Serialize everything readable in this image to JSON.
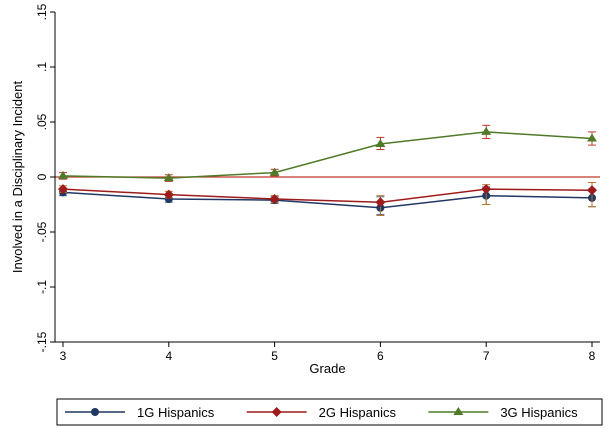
{
  "chart_data": {
    "type": "line",
    "xlabel": "Grade",
    "ylabel": "Involved in a Disciplinary Incident",
    "x": [
      3,
      4,
      5,
      6,
      7,
      8
    ],
    "x_ticks": [
      "3",
      "4",
      "5",
      "6",
      "7",
      "8"
    ],
    "ylim": [
      -0.15,
      0.15
    ],
    "y_ticks": [
      {
        "value": 0.15,
        "label": ".15"
      },
      {
        "value": 0.1,
        "label": ".1"
      },
      {
        "value": 0.05,
        "label": ".05"
      },
      {
        "value": 0,
        "label": "0"
      },
      {
        "value": -0.05,
        "label": "-.05"
      },
      {
        "value": -0.1,
        "label": "-.1"
      },
      {
        "value": -0.15,
        "label": "-.15"
      }
    ],
    "grid": false,
    "reference_line": {
      "y": 0,
      "color": "#c0392b"
    },
    "legend_position": "bottom",
    "series": [
      {
        "name": "1G Hispanics",
        "marker": "circle",
        "color": "#1f3864",
        "errorbar_color": "#4a6d9a",
        "values": [
          -0.014,
          -0.02,
          -0.021,
          -0.028,
          -0.017,
          -0.019
        ],
        "ci_low": [
          -0.017,
          -0.023,
          -0.024,
          -0.034,
          -0.025,
          -0.027
        ],
        "ci_high": [
          -0.011,
          -0.017,
          -0.018,
          -0.018,
          -0.009,
          -0.011
        ]
      },
      {
        "name": "2G Hispanics",
        "marker": "diamond",
        "color": "#9e1b1b",
        "errorbar_color": "#b7752a",
        "values": [
          -0.011,
          -0.016,
          -0.02,
          -0.023,
          -0.011,
          -0.012
        ],
        "ci_low": [
          -0.014,
          -0.019,
          -0.023,
          -0.035,
          -0.025,
          -0.027
        ],
        "ci_high": [
          -0.008,
          -0.013,
          -0.017,
          -0.017,
          -0.007,
          -0.005
        ]
      },
      {
        "name": "3G Hispanics",
        "marker": "triangle",
        "color": "#4f7a28",
        "errorbar_color": "#c0392b",
        "values": [
          0.001,
          -0.001,
          0.004,
          0.03,
          0.041,
          0.035
        ],
        "ci_low": [
          -0.002,
          -0.004,
          0.001,
          0.025,
          0.035,
          0.029
        ],
        "ci_high": [
          0.004,
          0.002,
          0.007,
          0.036,
          0.047,
          0.041
        ]
      }
    ]
  }
}
